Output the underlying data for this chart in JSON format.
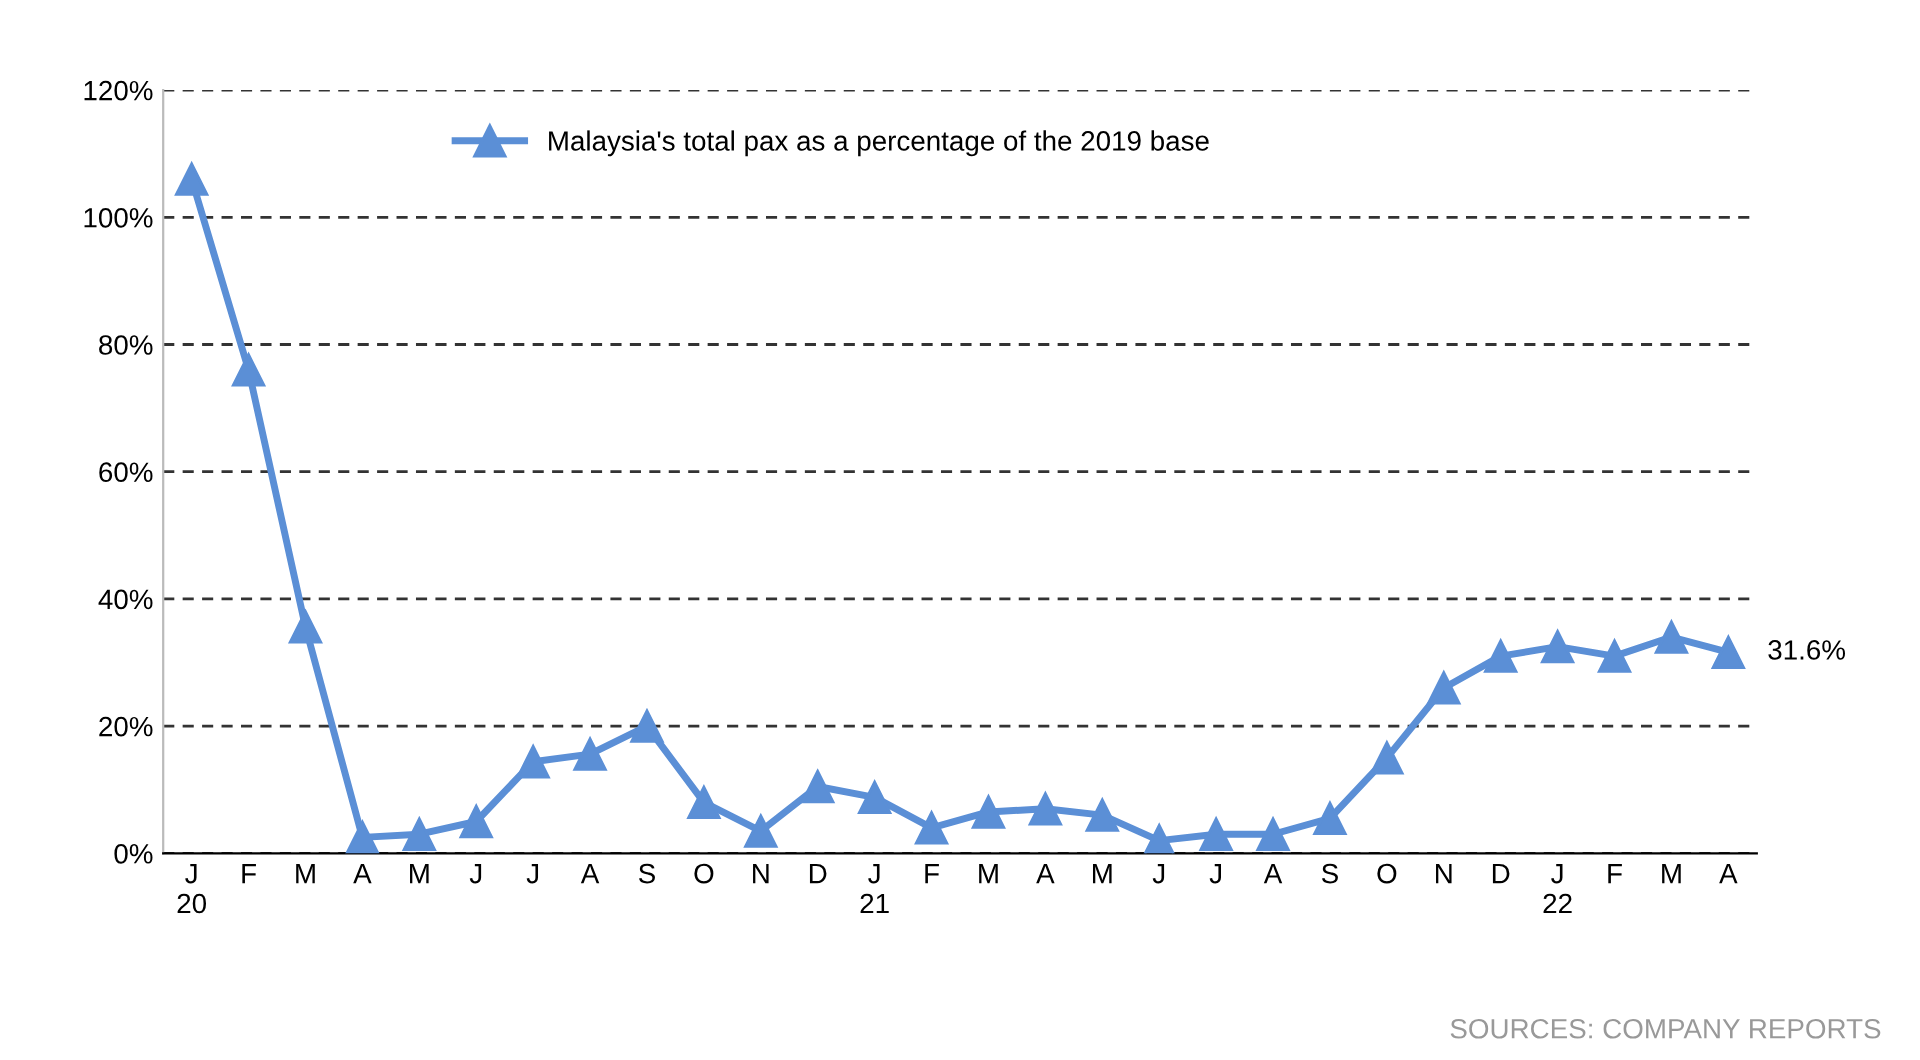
{
  "chart_data": {
    "type": "line",
    "categories": [
      "J\n20",
      "F",
      "M",
      "A",
      "M",
      "J",
      "J",
      "A",
      "S",
      "O",
      "N",
      "D",
      "J\n21",
      "F",
      "M",
      "A",
      "M",
      "J",
      "J",
      "A",
      "S",
      "O",
      "N",
      "D",
      "J\n22",
      "F",
      "M",
      "A"
    ],
    "series": [
      {
        "name": "Malaysia's total pax as a percentage of the 2019 base",
        "color": "#5b8fd6",
        "values": [
          106,
          76,
          35.6,
          2.5,
          3,
          5,
          14.4,
          15.6,
          20,
          8,
          3.5,
          10.5,
          8.8,
          4,
          6.5,
          7,
          6,
          2,
          3,
          3,
          5.5,
          15,
          26,
          31,
          32.5,
          31,
          34,
          31.6
        ],
        "value_labels": [
          null,
          null,
          null,
          null,
          null,
          null,
          null,
          null,
          null,
          null,
          null,
          null,
          null,
          null,
          null,
          null,
          null,
          null,
          null,
          null,
          null,
          null,
          null,
          null,
          null,
          null,
          null,
          "31.6%"
        ]
      }
    ],
    "ylim": [
      0,
      120
    ],
    "yticks": [
      {
        "value": 0,
        "label": "0%"
      },
      {
        "value": 20,
        "label": "20%"
      },
      {
        "value": 40,
        "label": "40%"
      },
      {
        "value": 60,
        "label": "60%"
      },
      {
        "value": 80,
        "label": "80%"
      },
      {
        "value": 100,
        "label": "100%"
      },
      {
        "value": 120,
        "label": "120%"
      }
    ],
    "grid": "y",
    "legend": "top",
    "marker": "triangle",
    "line_style": "solid",
    "annotations": [
      "SOURCES: COMPANY REPORTS"
    ]
  }
}
